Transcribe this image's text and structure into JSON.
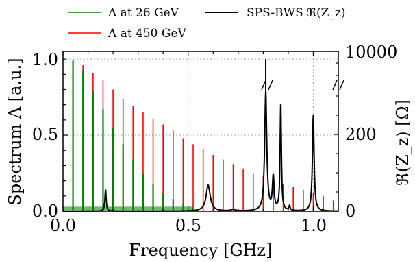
{
  "chart_data": {
    "type": "line",
    "xlabel": "Frequency [GHz]",
    "ylabel_left": "Spectrum Λ [a.u.]",
    "ylabel_right": "ℜ(Z_z) [Ω]",
    "xlim": [
      0.0,
      1.1
    ],
    "ylim_left": [
      0.0,
      1.05
    ],
    "x_ticks": [
      "0.0",
      "0.5",
      "1.0"
    ],
    "y_ticks_left": [
      "0.0",
      "0.5",
      "1.0"
    ],
    "y_ticks_right": [
      "0",
      "200",
      "10000"
    ],
    "right_axis_break": true,
    "grid": true,
    "legend_position": "top",
    "legend": [
      {
        "label": "Λ at 26 GeV",
        "color": "#008000"
      },
      {
        "label": "Λ at 450 GeV",
        "color": "#ff0000"
      },
      {
        "label": "SPS-BWS ℜ(Z_z)",
        "color": "#000000"
      }
    ],
    "series": [
      {
        "name": "Λ at 450 GeV",
        "color": "#ff0000",
        "x": [
          0.04,
          0.08,
          0.12,
          0.16,
          0.2,
          0.24,
          0.28,
          0.32,
          0.36,
          0.4,
          0.44,
          0.48,
          0.52,
          0.56,
          0.6,
          0.64,
          0.68,
          0.72,
          0.76,
          0.8,
          0.84,
          0.88,
          0.92,
          0.96,
          1.0,
          1.04,
          1.08
        ],
        "values": [
          0.99,
          0.96,
          0.91,
          0.86,
          0.8,
          0.74,
          0.69,
          0.65,
          0.61,
          0.57,
          0.53,
          0.48,
          0.44,
          0.41,
          0.37,
          0.34,
          0.31,
          0.28,
          0.25,
          0.23,
          0.2,
          0.18,
          0.16,
          0.14,
          0.12,
          0.1,
          0.07
        ]
      },
      {
        "name": "Λ at 26 GeV",
        "color": "#008000",
        "x": [
          0.04,
          0.08,
          0.12,
          0.16,
          0.2,
          0.24,
          0.28,
          0.32,
          0.36,
          0.4,
          0.44,
          0.48,
          0.52
        ],
        "values": [
          0.99,
          0.92,
          0.79,
          0.67,
          0.55,
          0.44,
          0.34,
          0.25,
          0.18,
          0.12,
          0.08,
          0.05,
          0.02
        ]
      },
      {
        "name": "SPS-BWS ℜ(Z_z)",
        "color": "#000000",
        "type": "resonances",
        "resonances": [
          {
            "f": 0.17,
            "peak": 0.14,
            "width": 0.003
          },
          {
            "f": 0.58,
            "peak": 0.17,
            "width": 0.01
          },
          {
            "f": 0.68,
            "peak": 0.01,
            "width": 0.01
          },
          {
            "f": 0.81,
            "peak": 0.78,
            "width": 0.005
          },
          {
            "f": 0.84,
            "peak": 0.22,
            "width": 0.004
          },
          {
            "f": 0.87,
            "peak": 0.7,
            "width": 0.003
          },
          {
            "f": 0.905,
            "peak": 0.03,
            "width": 0.003
          },
          {
            "f": 1.0,
            "peak": 0.63,
            "width": 0.004
          }
        ]
      }
    ]
  }
}
